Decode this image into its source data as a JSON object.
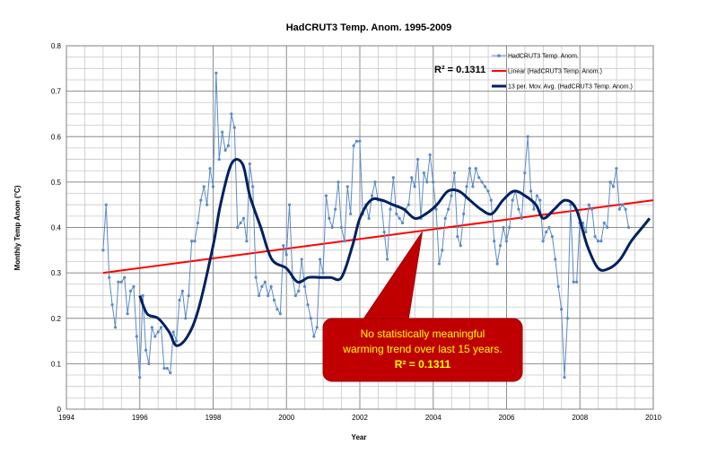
{
  "chart_data": {
    "type": "line",
    "title": "HadCRUT3 Temp. Anom. 1995-2009",
    "xlabel": "Year",
    "ylabel": "Monthly Temp Anom (°C)",
    "xlim": [
      1994,
      2010
    ],
    "ylim": [
      0,
      0.8
    ],
    "x_ticks": [
      1994,
      1996,
      1998,
      2000,
      2002,
      2004,
      2006,
      2008,
      2010
    ],
    "y_ticks": [
      0,
      0.1,
      0.2,
      0.3,
      0.4,
      0.5,
      0.6,
      0.7,
      0.8
    ],
    "y_tick_labels": [
      "0",
      "0.1",
      "0.2",
      "0.3",
      "0.4",
      "0.5",
      "0.6",
      "0.7",
      "0.8"
    ],
    "grid": true,
    "legend_position": "top-right",
    "legend": [
      {
        "label": "HadCRUT3 Temp. Anom.",
        "color": "#5b8ac6"
      },
      {
        "label": "Linear (HadCRUT3 Temp. Anom.)",
        "color": "#ff0000"
      },
      {
        "label": "13 per. Mov. Avg. (HadCRUT3 Temp. Anom.)",
        "color": "#002060"
      }
    ],
    "r_squared_label": "R² = 0.1311",
    "callout": {
      "lines": [
        "No statistically meaningful",
        "warming trend over last 15 years."
      ],
      "bold_line": "R² = 0.1311",
      "fill": "#c00000",
      "text_color": "#ffff00",
      "points_to_year": 2003.7
    },
    "series": [
      {
        "name": "HadCRUT3 Temp. Anom.",
        "color": "#5b8ac6",
        "x_start": 1995.0,
        "x_step": 0.0833,
        "values": [
          0.35,
          0.45,
          0.29,
          0.23,
          0.18,
          0.28,
          0.28,
          0.29,
          0.21,
          0.26,
          0.27,
          0.16,
          0.07,
          0.25,
          0.13,
          0.1,
          0.18,
          0.16,
          0.17,
          0.18,
          0.09,
          0.09,
          0.08,
          0.17,
          0.15,
          0.24,
          0.26,
          0.2,
          0.25,
          0.37,
          0.37,
          0.41,
          0.46,
          0.49,
          0.45,
          0.53,
          0.49,
          0.74,
          0.55,
          0.61,
          0.57,
          0.58,
          0.65,
          0.62,
          0.4,
          0.41,
          0.42,
          0.37,
          0.54,
          0.49,
          0.29,
          0.25,
          0.27,
          0.28,
          0.25,
          0.27,
          0.24,
          0.22,
          0.21,
          0.36,
          0.34,
          0.45,
          0.29,
          0.25,
          0.26,
          0.33,
          0.27,
          0.23,
          0.2,
          0.16,
          0.18,
          0.33,
          0.3,
          0.47,
          0.42,
          0.4,
          0.44,
          0.5,
          0.4,
          0.37,
          0.49,
          0.43,
          0.58,
          0.59,
          0.59,
          0.43,
          0.45,
          0.42,
          0.47,
          0.5,
          0.46,
          0.46,
          0.39,
          0.33,
          0.44,
          0.51,
          0.43,
          0.42,
          0.41,
          0.44,
          0.45,
          0.51,
          0.49,
          0.55,
          0.42,
          0.52,
          0.5,
          0.56,
          0.5,
          0.44,
          0.32,
          0.35,
          0.42,
          0.44,
          0.47,
          0.52,
          0.38,
          0.36,
          0.43,
          0.49,
          0.53,
          0.49,
          0.53,
          0.51,
          0.5,
          0.49,
          0.48,
          0.46,
          0.37,
          0.32,
          0.36,
          0.4,
          0.37,
          0.4,
          0.46,
          0.48,
          0.44,
          0.42,
          0.52,
          0.6,
          0.48,
          0.44,
          0.47,
          0.46,
          0.37,
          0.39,
          0.4,
          0.38,
          0.33,
          0.27,
          0.22,
          0.07,
          0.2,
          0.45,
          0.28,
          0.28,
          0.41,
          0.41,
          0.39,
          0.45,
          0.44,
          0.38,
          0.37,
          0.37,
          0.41,
          0.4,
          0.5,
          0.49,
          0.53,
          0.44,
          0.45,
          0.44,
          0.4
        ]
      },
      {
        "name": "Linear (HadCRUT3 Temp. Anom.)",
        "color": "#ff0000",
        "type": "trendline",
        "x": [
          1995.0,
          2010.0
        ],
        "values": [
          0.3,
          0.46
        ]
      },
      {
        "name": "13 per. Mov. Avg. (HadCRUT3 Temp. Anom.)",
        "color": "#002060",
        "x": [
          1996.0,
          1996.2,
          1996.5,
          1996.8,
          1997.0,
          1997.3,
          1997.6,
          1998.0,
          1998.2,
          1998.5,
          1998.8,
          1999.0,
          1999.3,
          1999.6,
          2000.0,
          2000.3,
          2000.6,
          2000.9,
          2001.2,
          2001.5,
          2001.8,
          2002.0,
          2002.3,
          2002.6,
          2002.9,
          2003.2,
          2003.5,
          2003.8,
          2004.1,
          2004.4,
          2004.7,
          2005.0,
          2005.3,
          2005.6,
          2005.9,
          2006.2,
          2006.5,
          2006.8,
          2007.0,
          2007.3,
          2007.6,
          2007.9,
          2008.2,
          2008.5,
          2008.8,
          2009.1,
          2009.4,
          2009.7,
          2009.9
        ],
        "values": [
          0.25,
          0.21,
          0.2,
          0.17,
          0.14,
          0.16,
          0.22,
          0.36,
          0.45,
          0.54,
          0.54,
          0.47,
          0.4,
          0.33,
          0.31,
          0.28,
          0.29,
          0.29,
          0.29,
          0.29,
          0.36,
          0.42,
          0.46,
          0.46,
          0.45,
          0.44,
          0.42,
          0.43,
          0.45,
          0.48,
          0.48,
          0.46,
          0.44,
          0.43,
          0.46,
          0.48,
          0.47,
          0.45,
          0.42,
          0.44,
          0.46,
          0.44,
          0.36,
          0.31,
          0.31,
          0.33,
          0.37,
          0.4,
          0.42
        ]
      }
    ]
  }
}
